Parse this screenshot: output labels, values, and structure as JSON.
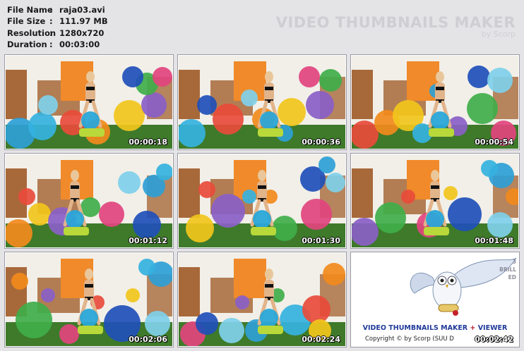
{
  "file_info": {
    "rows": [
      {
        "label": "File Name",
        "value": "raja03.avi"
      },
      {
        "label": "File Size",
        "value": "111.97 MB"
      },
      {
        "label": "Resolution",
        "value": "1280x720"
      },
      {
        "label": "Duration",
        "value": "00:03:00"
      }
    ],
    "separator": ":"
  },
  "brand": {
    "title": "VIDEO THUMBNAILS MAKER",
    "subtitle": "by Scorp"
  },
  "thumbnails": [
    {
      "timestamp": "00:00:18"
    },
    {
      "timestamp": "00:00:36"
    },
    {
      "timestamp": "00:00:54"
    },
    {
      "timestamp": "00:01:12"
    },
    {
      "timestamp": "00:01:30"
    },
    {
      "timestamp": "00:01:48"
    },
    {
      "timestamp": "00:02:06"
    },
    {
      "timestamp": "00:02:24"
    }
  ],
  "promo": {
    "title_part1": "VIDEO THUMBNAILS MAKER",
    "title_plus": " + ",
    "title_part2": "VIEWER",
    "copyright": "Copyright © by Scorp (SUU D",
    "timestamp": "00:02:42",
    "side_line1": "3",
    "side_line2": "BRILL",
    "side_line3": "ED"
  },
  "colors": {
    "background": "#e4e3e6",
    "promo_blue": "#203a9a",
    "promo_red": "#b2172b",
    "wall": "#f1efe8",
    "wood": "#a8693a",
    "floor": "#3e7a2a",
    "curtain": "#f08a2a"
  }
}
